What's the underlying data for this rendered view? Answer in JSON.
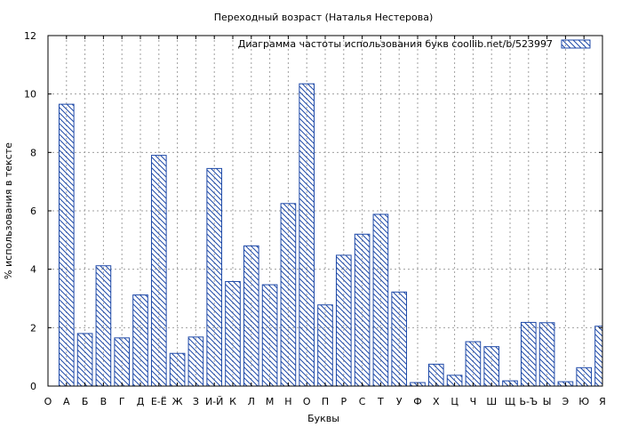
{
  "chart_data": {
    "type": "bar",
    "title": "Переходный возраст (Наталья Нестерова)",
    "xlabel": "Буквы",
    "ylabel": "% использования в тексте",
    "legend": {
      "label": "Диаграмма частоты использования букв  coollib.net/b/523997",
      "placement": "top-right"
    },
    "ylim": [
      0,
      12
    ],
    "yticks": [
      "0",
      "2",
      "4",
      "6",
      "8",
      "10",
      "12"
    ],
    "grid": true,
    "categories": [
      "О",
      "А",
      "Б",
      "В",
      "Г",
      "Д",
      "Е-Ё",
      "Ж",
      "З",
      "И-Й",
      "К",
      "Л",
      "М",
      "Н",
      "О",
      "П",
      "Р",
      "С",
      "Т",
      "У",
      "Ф",
      "Х",
      "Ц",
      "Ч",
      "Ш",
      "Щ",
      "Ь-Ъ",
      "Ы",
      "Э",
      "Ю",
      "Я"
    ],
    "values": [
      null,
      9.65,
      1.8,
      4.12,
      1.65,
      3.12,
      7.9,
      1.12,
      1.68,
      7.45,
      3.58,
      4.8,
      3.47,
      6.25,
      10.35,
      2.78,
      4.48,
      5.2,
      5.88,
      3.22,
      0.12,
      0.75,
      0.37,
      1.52,
      1.35,
      0.18,
      2.18,
      2.17,
      0.15,
      0.63,
      2.05
    ],
    "bar_color": "#1f4aa8",
    "background": "#ffffff"
  }
}
